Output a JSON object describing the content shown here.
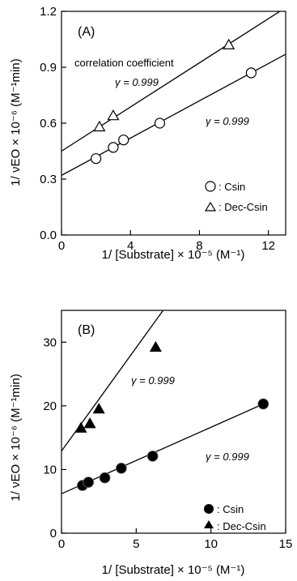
{
  "chart_data": [
    {
      "type": "scatter",
      "panel_label": "(A)",
      "xlabel": "1/ [Substrate] × 10⁻⁵ (M⁻¹)",
      "ylabel": "1/ νEO × 10⁻⁶ (M⁻¹min)",
      "xlim": [
        0,
        13
      ],
      "ylim": [
        0,
        1.2
      ],
      "xticks": [
        "0",
        "4",
        "8",
        "12"
      ],
      "yticks": [
        "0.0",
        "0.3",
        "0.6",
        "0.9",
        "1.2"
      ],
      "annotations": {
        "correlation_label": "correlation coefficient",
        "upper_gamma": "γ = 0.999",
        "lower_gamma": "γ = 0.999"
      },
      "series": [
        {
          "name": ": Csin",
          "marker": "open-circle",
          "x": [
            2.0,
            3.0,
            3.6,
            5.7,
            11.0
          ],
          "y": [
            0.41,
            0.47,
            0.51,
            0.6,
            0.87
          ],
          "fit": [
            [
              0,
              0.32
            ],
            [
              13,
              0.97
            ]
          ]
        },
        {
          "name": ": Dec-Csin",
          "marker": "open-triangle",
          "x": [
            2.2,
            3.0,
            9.7
          ],
          "y": [
            0.58,
            0.64,
            1.02
          ],
          "fit": [
            [
              0,
              0.45
            ],
            [
              13,
              1.22
            ]
          ]
        }
      ]
    },
    {
      "type": "scatter",
      "panel_label": "(B)",
      "xlabel": "1/ [Substrate] × 10⁻⁵ (M⁻¹)",
      "ylabel": "1/ νEO × 10⁻⁶ (M⁻¹min)",
      "xlim": [
        0,
        15
      ],
      "ylim": [
        0,
        35
      ],
      "xticks": [
        "0",
        "5",
        "10",
        "15"
      ],
      "yticks": [
        "0",
        "10",
        "20",
        "30"
      ],
      "annotations": {
        "upper_gamma": "γ = 0.999",
        "lower_gamma": "γ = 0.999"
      },
      "series": [
        {
          "name": ": Csin",
          "marker": "filled-circle",
          "x": [
            1.4,
            1.8,
            2.9,
            4.0,
            6.1,
            13.5
          ],
          "y": [
            7.5,
            8.0,
            8.7,
            10.2,
            12.1,
            20.3
          ],
          "fit": [
            [
              0,
              6.2
            ],
            [
              13.8,
              20.6
            ]
          ]
        },
        {
          "name": ": Dec-Csin",
          "marker": "filled-triangle",
          "x": [
            1.3,
            1.9,
            2.5,
            6.3
          ],
          "y": [
            16.5,
            17.2,
            19.5,
            29.2
          ],
          "fit": [
            [
              0,
              12.9
            ],
            [
              6.8,
              35
            ]
          ]
        }
      ]
    }
  ]
}
